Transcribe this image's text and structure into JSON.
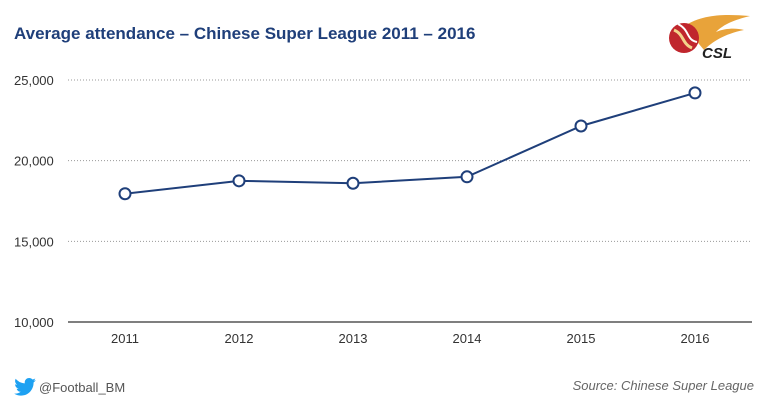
{
  "chart_data": {
    "type": "line",
    "title": "Average attendance – Chinese Super League 2011 – 2016",
    "xlabel": "",
    "ylabel": "",
    "categories": [
      "2011",
      "2012",
      "2013",
      "2014",
      "2015",
      "2016"
    ],
    "series": [
      {
        "values": [
          17950,
          18750,
          18600,
          19000,
          22150,
          24200
        ],
        "color": "#1f3f7a"
      }
    ],
    "ylim": [
      10000,
      25000
    ],
    "yticks": [
      10000,
      15000,
      20000,
      25000
    ],
    "ytick_labels": [
      "10,000",
      "15,000",
      "20,000",
      "25,000"
    ],
    "grid": true,
    "legend": "none"
  },
  "footer": {
    "twitter_handle": "@Football_BM",
    "twitter_icon": "twitter-bird-icon",
    "source": "Source: Chinese Super League"
  },
  "logo": {
    "text": "CSL"
  },
  "colors": {
    "title": "#1f3f7a",
    "line": "#1f3f7a",
    "twitter": "#1da1f2"
  }
}
